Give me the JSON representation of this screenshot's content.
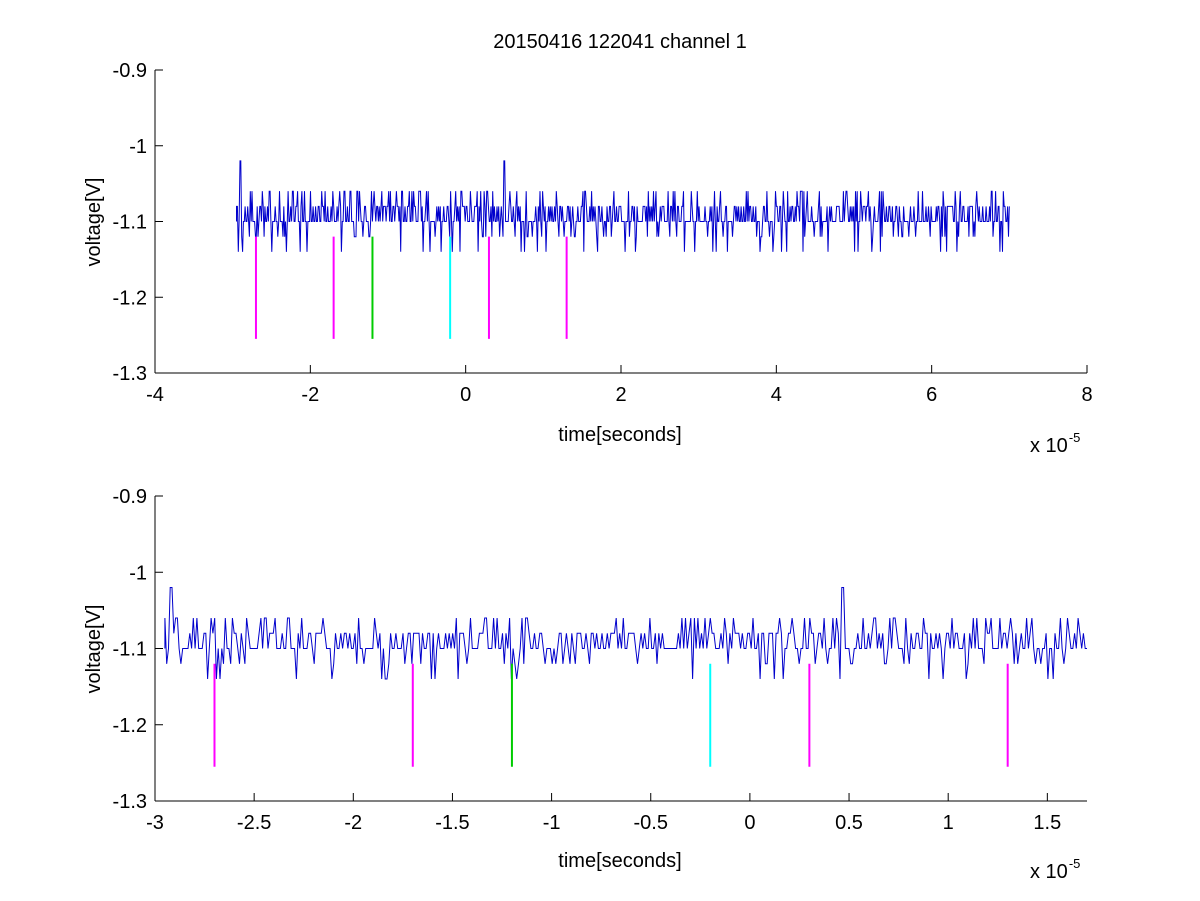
{
  "figure": {
    "title": "20150416 122041 channel 1"
  },
  "chart_data": [
    {
      "type": "line",
      "title": "20150416 122041 channel 1",
      "xlabel": "time[seconds]",
      "ylabel": "voltage[V]",
      "x_multiplier_base": "x 10",
      "x_multiplier_exp": "-5",
      "xlim": [
        -4,
        8
      ],
      "ylim": [
        -1.3,
        -0.9
      ],
      "xticks": [
        -4,
        -2,
        0,
        2,
        4,
        6,
        8
      ],
      "xtick_labels": [
        "-4",
        "-2",
        "0",
        "2",
        "4",
        "6",
        "8"
      ],
      "yticks": [
        -1.3,
        -1.2,
        -1.1,
        -1.0,
        -0.9
      ],
      "ytick_labels": [
        "-1.3",
        "-1.2",
        "-1.1",
        "-1",
        "-0.9"
      ],
      "grid": false,
      "series": [
        {
          "color": "#0000cc",
          "x_range": [
            -2.95,
            7.0
          ],
          "baseline": -1.1,
          "levels": [
            -1.14,
            -1.12,
            -1.1,
            -1.08,
            -1.06
          ],
          "peaks": [
            {
              "x": -2.9,
              "y": -1.02
            },
            {
              "x": 0.5,
              "y": -1.02
            }
          ]
        }
      ],
      "markers": [
        {
          "x": -2.7,
          "y_top": -1.12,
          "y_bottom": -1.255,
          "color": "#ff00ff"
        },
        {
          "x": -1.7,
          "y_top": -1.12,
          "y_bottom": -1.255,
          "color": "#ff00ff"
        },
        {
          "x": -1.2,
          "y_top": -1.12,
          "y_bottom": -1.255,
          "color": "#00cc00"
        },
        {
          "x": -0.2,
          "y_top": -1.12,
          "y_bottom": -1.255,
          "color": "#00ffff"
        },
        {
          "x": 0.3,
          "y_top": -1.12,
          "y_bottom": -1.255,
          "color": "#ff00ff"
        },
        {
          "x": 1.3,
          "y_top": -1.12,
          "y_bottom": -1.255,
          "color": "#ff00ff"
        }
      ]
    },
    {
      "type": "line",
      "title": "",
      "xlabel": "time[seconds]",
      "ylabel": "voltage[V]",
      "x_multiplier_base": "x 10",
      "x_multiplier_exp": "-5",
      "xlim": [
        -3.0,
        1.7
      ],
      "ylim": [
        -1.3,
        -0.9
      ],
      "xticks": [
        -3,
        -2.5,
        -2,
        -1.5,
        -1,
        -0.5,
        0,
        0.5,
        1,
        1.5
      ],
      "xtick_labels": [
        "-3",
        "-2.5",
        "-2",
        "-1.5",
        "-1",
        "-0.5",
        "0",
        "0.5",
        "1",
        "1.5"
      ],
      "yticks": [
        -1.3,
        -1.2,
        -1.1,
        -1.0,
        -0.9
      ],
      "ytick_labels": [
        "-1.3",
        "-1.2",
        "-1.1",
        "-1",
        "-0.9"
      ],
      "grid": false,
      "series": [
        {
          "color": "#0000cc",
          "x_range": [
            -2.95,
            1.7
          ],
          "baseline": -1.1,
          "levels": [
            -1.14,
            -1.12,
            -1.1,
            -1.08,
            -1.06
          ],
          "peaks": [
            {
              "x": -2.92,
              "y": -1.02
            },
            {
              "x": 0.47,
              "y": -1.02
            }
          ]
        }
      ],
      "markers": [
        {
          "x": -2.7,
          "y_top": -1.12,
          "y_bottom": -1.255,
          "color": "#ff00ff"
        },
        {
          "x": -1.7,
          "y_top": -1.12,
          "y_bottom": -1.255,
          "color": "#ff00ff"
        },
        {
          "x": -1.2,
          "y_top": -1.12,
          "y_bottom": -1.255,
          "color": "#00cc00"
        },
        {
          "x": -0.2,
          "y_top": -1.12,
          "y_bottom": -1.255,
          "color": "#00ffff"
        },
        {
          "x": 0.3,
          "y_top": -1.12,
          "y_bottom": -1.255,
          "color": "#ff00ff"
        },
        {
          "x": 1.3,
          "y_top": -1.12,
          "y_bottom": -1.255,
          "color": "#ff00ff"
        }
      ]
    }
  ]
}
